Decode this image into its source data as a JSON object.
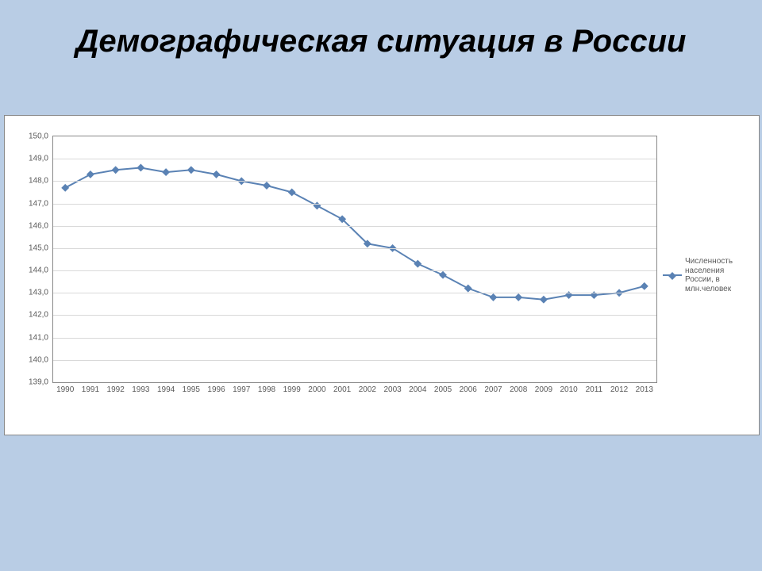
{
  "title": "Демографическая ситуация в России",
  "chart": {
    "type": "line",
    "series_label": "Численность населения России, в млн.человек",
    "categories": [
      "1990",
      "1991",
      "1992",
      "1993",
      "1994",
      "1995",
      "1996",
      "1997",
      "1998",
      "1999",
      "2000",
      "2001",
      "2002",
      "2003",
      "2004",
      "2005",
      "2006",
      "2007",
      "2008",
      "2009",
      "2010",
      "2011",
      "2012",
      "2013"
    ],
    "values": [
      147.7,
      148.3,
      148.5,
      148.6,
      148.4,
      148.5,
      148.3,
      148.0,
      147.8,
      147.5,
      146.9,
      146.3,
      145.2,
      145.0,
      144.3,
      143.8,
      143.2,
      142.8,
      142.8,
      142.7,
      142.9,
      142.9,
      143.0,
      143.3
    ],
    "ylim": [
      139.0,
      150.0
    ],
    "ytick_step": 1.0,
    "ytick_format": "decimal-comma-1",
    "line_color": "#5a82b4",
    "marker_color": "#5a82b4",
    "marker_shape": "diamond",
    "marker_size": 7,
    "line_width": 2,
    "grid_color": "#d9d9d9",
    "plot_border_color": "#888888",
    "outer_border_color": "#888888",
    "background_color": "#ffffff",
    "slide_background": "#b9cde5",
    "tick_font_size": 10,
    "tick_color": "#595959",
    "legend_position": "right"
  }
}
